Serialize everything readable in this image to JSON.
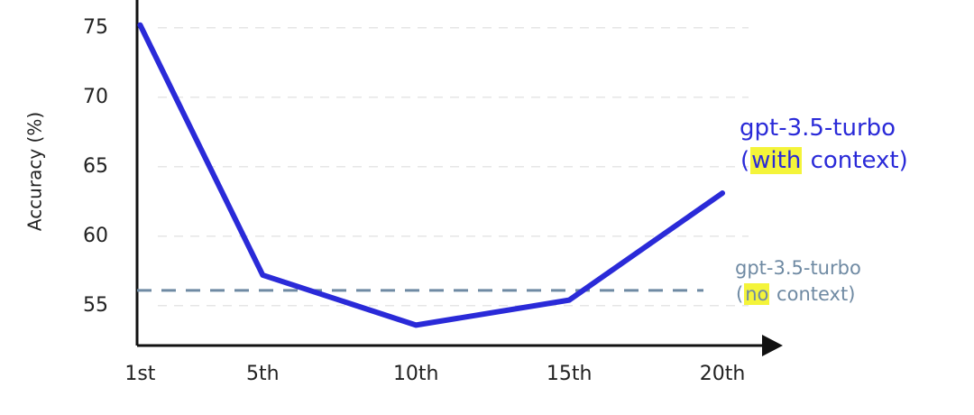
{
  "chart_data": {
    "type": "line",
    "y_label": "Accuracy (%)",
    "x": [
      1,
      5,
      10,
      15,
      20
    ],
    "xticks": [
      {
        "value": 1,
        "label": "1st"
      },
      {
        "value": 5,
        "label": "5th"
      },
      {
        "value": 10,
        "label": "10th"
      },
      {
        "value": 15,
        "label": "15th"
      },
      {
        "value": 20,
        "label": "20th"
      }
    ],
    "xlim": [
      0.9,
      22
    ],
    "series": [
      {
        "name": "gpt-3.5-turbo",
        "note": [
          "(",
          "with",
          " context)"
        ],
        "color": "#2a2ad8",
        "values": [
          75.2,
          57.2,
          53.6,
          55.4,
          63.1
        ]
      }
    ],
    "reference_lines": [
      {
        "name": "gpt-3.5-turbo",
        "note": [
          "(",
          "no",
          " context)"
        ],
        "color": "#6f8aa3",
        "value": 56.1
      }
    ],
    "highlight_color": "#f4f43a",
    "ylim": [
      52,
      77
    ],
    "yticks": [
      55,
      60,
      65,
      70,
      75
    ],
    "grid": true
  }
}
